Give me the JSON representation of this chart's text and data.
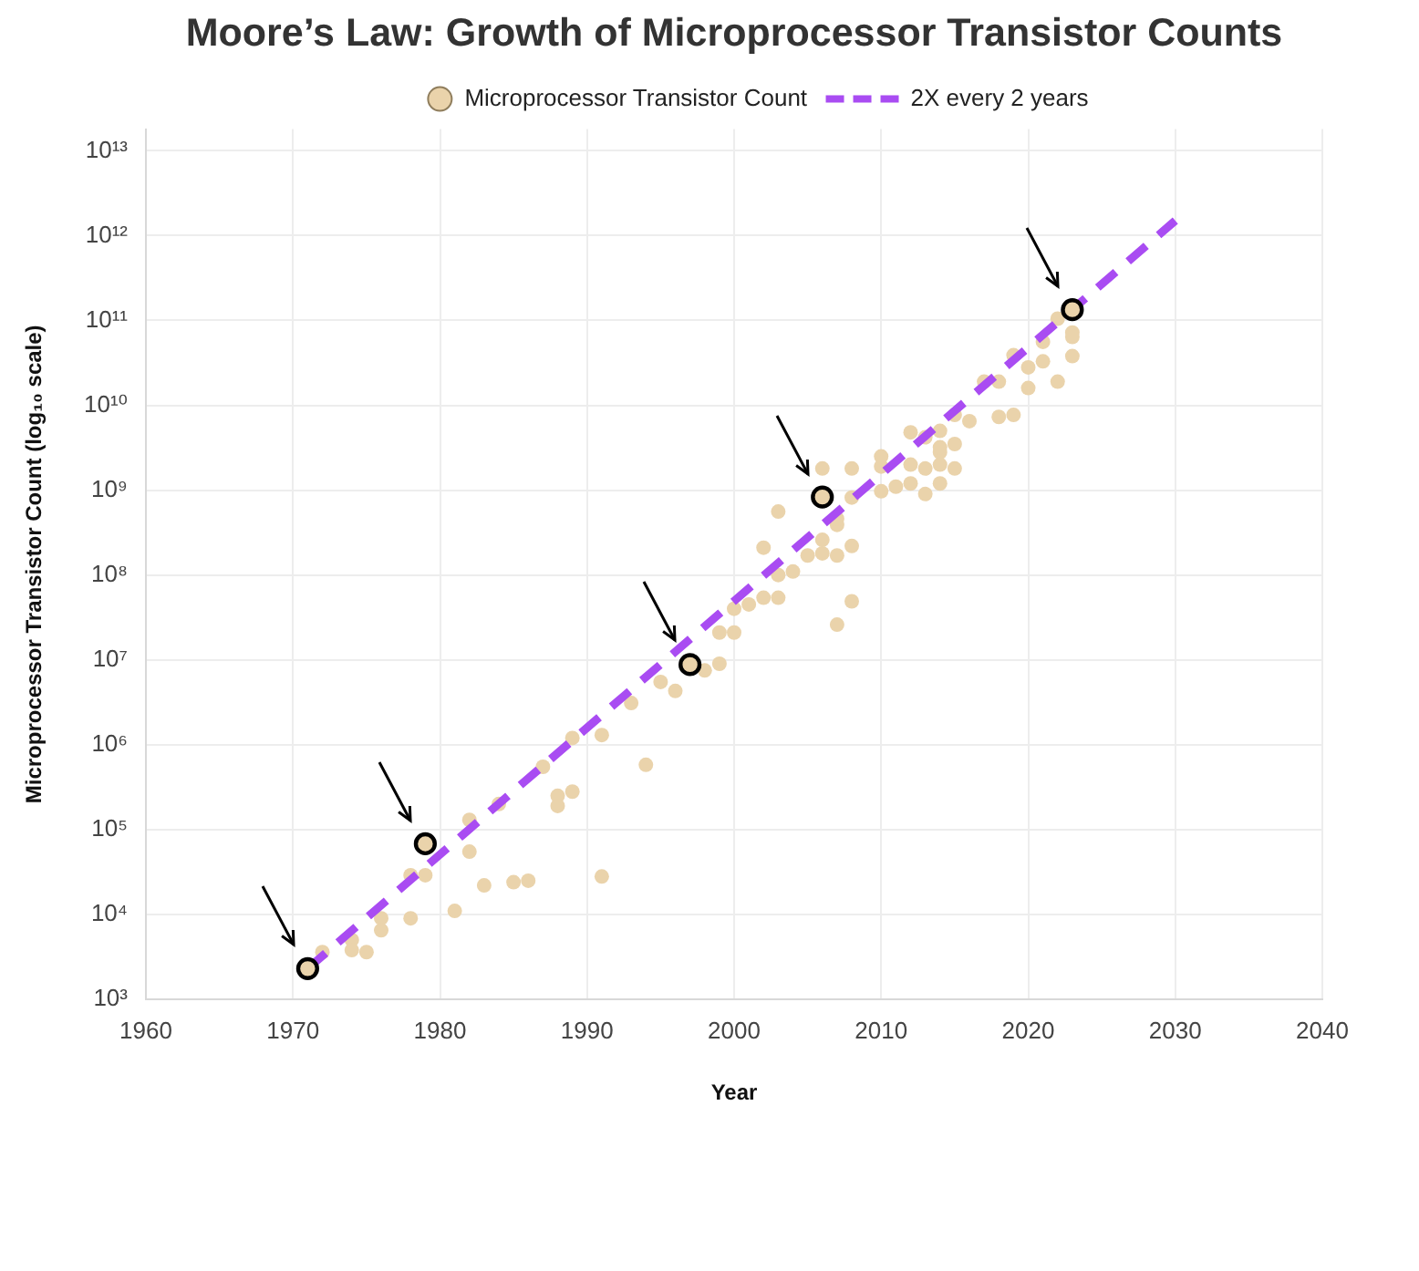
{
  "chart_data": {
    "type": "scatter",
    "title": "Moore’s Law: Growth of Microprocessor Transistor Counts",
    "xlabel": "Year",
    "ylabel": "Microprocessor Transistor Count (log₁₀ scale)",
    "xlim": [
      1960,
      2040
    ],
    "xticks": [
      1960,
      1970,
      1980,
      1990,
      2000,
      2010,
      2020,
      2030,
      2040
    ],
    "ylim": [
      1000,
      18000000000000
    ],
    "yticks": [
      {
        "value": 1000,
        "label": "10³"
      },
      {
        "value": 10000,
        "label": "10⁴"
      },
      {
        "value": 100000,
        "label": "10⁵"
      },
      {
        "value": 1000000,
        "label": "10⁶"
      },
      {
        "value": 10000000,
        "label": "10⁷"
      },
      {
        "value": 100000000,
        "label": "10⁸"
      },
      {
        "value": 1000000000,
        "label": "10⁹"
      },
      {
        "value": 10000000000,
        "label": "10¹⁰"
      },
      {
        "value": 100000000000,
        "label": "10¹¹"
      },
      {
        "value": 1000000000000,
        "label": "10¹²"
      },
      {
        "value": 10000000000000,
        "label": "10¹³"
      }
    ],
    "log": "y",
    "grid": true,
    "legend": "top",
    "marker": "circle",
    "series": [
      {
        "name": "Microprocessor Transistor Count",
        "type": "scatter",
        "color": "#ead3ab",
        "x": [
          1972,
          1974,
          1974,
          1975,
          1976,
          1976,
          1978,
          1978,
          1979,
          1981,
          1982,
          1982,
          1983,
          1984,
          1985,
          1986,
          1987,
          1988,
          1988,
          1989,
          1989,
          1991,
          1991,
          1993,
          1994,
          1995,
          1996,
          1998,
          1999,
          1999,
          2000,
          2000,
          2001,
          2002,
          2002,
          2003,
          2003,
          2003,
          2004,
          2005,
          2006,
          2006,
          2006,
          2007,
          2007,
          2007,
          2007,
          2008,
          2008,
          2008,
          2008,
          2010,
          2010,
          2010,
          2011,
          2012,
          2012,
          2012,
          2013,
          2013,
          2013,
          2014,
          2014,
          2014,
          2014,
          2014,
          2015,
          2015,
          2015,
          2016,
          2017,
          2018,
          2019,
          2018,
          2019,
          2020,
          2020,
          2021,
          2021,
          2022,
          2022,
          2023,
          2023,
          2023
        ],
        "values": [
          3600,
          5000,
          3800,
          3600,
          9000,
          6500,
          9000,
          29000,
          29000,
          11000,
          55000,
          130000,
          22000,
          200000,
          24000,
          25000,
          550000,
          250000,
          190000,
          280000,
          1200000,
          1300000,
          28000,
          3100000,
          580000,
          5500000,
          4300000,
          7500000,
          9000000,
          21000000,
          21000000,
          40000000,
          45000000,
          54000000,
          210000000,
          54000000,
          100000000,
          560000000,
          110000000,
          170000000,
          180000000,
          260000000,
          1800000000,
          390000000,
          460000000,
          170000000,
          26000000,
          220000000,
          1800000000,
          820000000,
          49000000,
          1900000000,
          970000000,
          2500000000,
          1100000000,
          2000000000,
          1200000000,
          4800000000,
          4200000000,
          1800000000,
          900000000,
          1200000000,
          2800000000,
          2000000000,
          3200000000,
          5000000000,
          1800000000,
          3500000000,
          7700000000,
          6500000000,
          19000000000,
          7300000000,
          7700000000,
          19000000000,
          39000000000,
          28000000000,
          16000000000,
          56000000000,
          33000000000,
          19000000000,
          105000000000,
          72000000000,
          64000000000,
          38000000000
        ]
      },
      {
        "type": "scatter",
        "color": "#ead3ab",
        "x": [
          1971,
          1979,
          1997,
          2006,
          2023
        ],
        "values": [
          2300,
          68000,
          8800000,
          830000000,
          134000000000
        ]
      },
      {
        "name": "2X every 2 years",
        "type": "line",
        "color": "#a94cf2",
        "line_style": "dashed",
        "marker": "none",
        "x": [
          1971,
          2030
        ],
        "values": [
          2300,
          1500000000000
        ]
      }
    ]
  }
}
